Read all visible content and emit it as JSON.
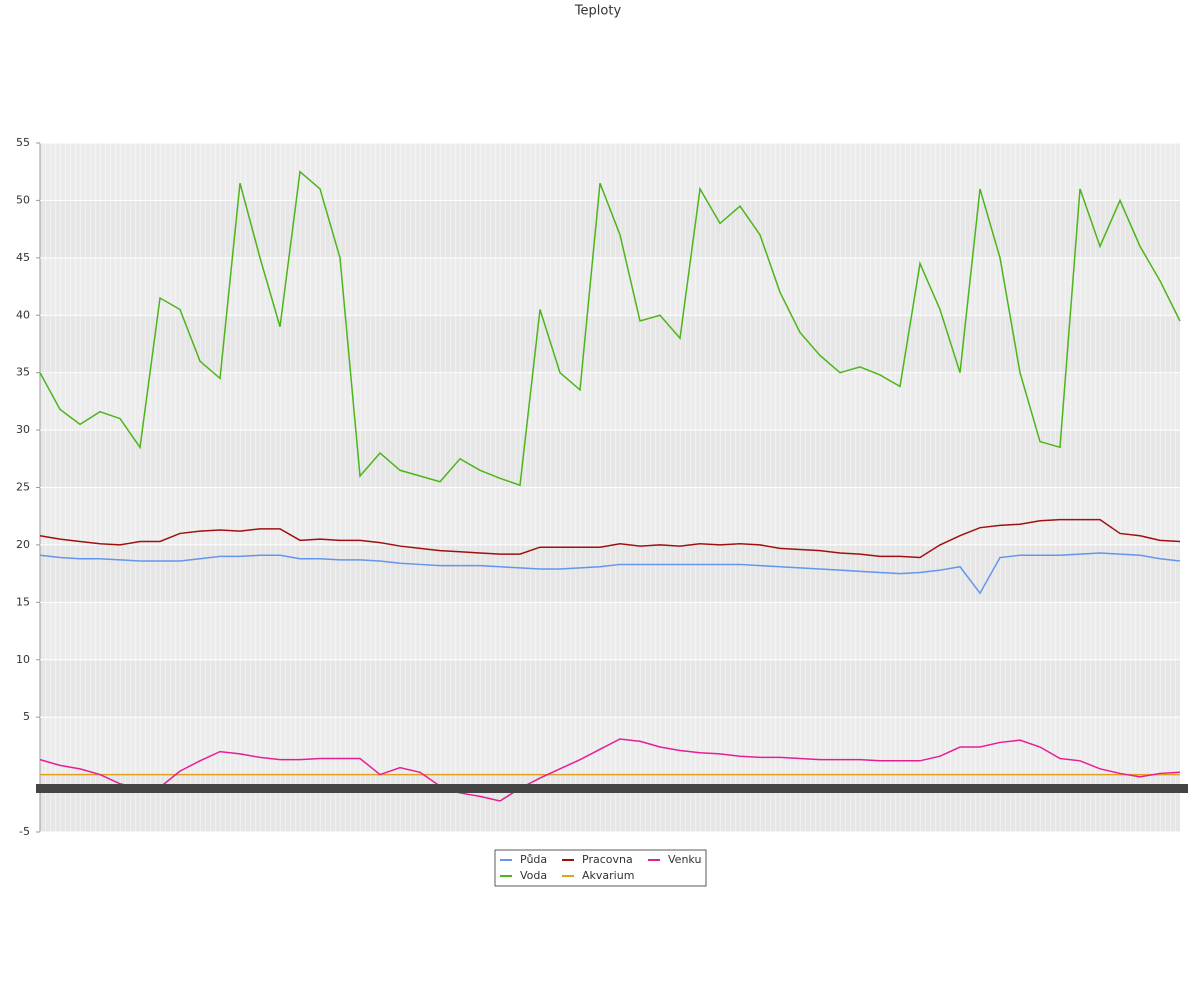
{
  "chart_data": {
    "type": "line",
    "title": "Teploty",
    "categories": [
      null,
      null,
      null,
      null,
      null,
      null,
      null,
      null,
      null,
      null,
      null,
      null,
      null,
      null,
      null,
      null,
      null,
      null,
      null,
      null,
      null,
      null,
      null,
      null,
      null,
      null,
      null,
      null,
      null,
      null,
      null,
      null,
      null,
      null,
      null,
      null,
      null,
      null,
      null,
      null,
      null,
      null,
      null,
      null,
      null,
      null,
      null,
      null,
      null,
      null,
      null,
      null,
      null,
      null,
      null,
      null,
      null,
      null
    ],
    "ylim": [
      -5,
      55
    ],
    "yticks": [
      -5,
      5,
      10,
      15,
      20,
      25,
      30,
      35,
      40,
      45,
      50,
      55
    ],
    "grid": true,
    "series": [
      {
        "name": "Půda",
        "color": "#6495ed",
        "values": [
          19.1,
          18.9,
          18.8,
          18.8,
          18.7,
          18.6,
          18.6,
          18.6,
          18.8,
          19,
          19,
          19.1,
          19.1,
          18.8,
          18.8,
          18.7,
          18.7,
          18.6,
          18.4,
          18.3,
          18.2,
          18.2,
          18.2,
          18.1,
          18,
          17.9,
          17.9,
          18,
          18.1,
          18.3,
          18.3,
          18.3,
          18.3,
          18.3,
          18.3,
          18.3,
          18.2,
          18.1,
          18,
          17.9,
          17.8,
          17.7,
          17.6,
          17.5,
          17.6,
          17.8,
          18.1,
          15.8,
          18.9,
          19.1,
          19.1,
          19.1,
          19.2,
          19.3,
          19.2,
          19.1,
          18.8,
          18.6
        ]
      },
      {
        "name": "Voda",
        "color": "#4cb51a",
        "values": [
          35,
          31.8,
          30.5,
          31.6,
          31,
          28.5,
          41.5,
          40.5,
          36,
          34.5,
          51.5,
          45,
          39,
          52.5,
          51,
          45,
          26,
          28,
          26.5,
          26,
          25.5,
          27.5,
          26.5,
          25.8,
          25.2,
          40.5,
          35,
          33.5,
          51.5,
          47,
          39.5,
          40,
          38,
          51,
          48,
          49.5,
          47,
          42,
          38.5,
          36.5,
          35,
          35.5,
          34.8,
          33.8,
          44.5,
          40.5,
          35,
          51,
          45,
          35,
          29,
          28.5,
          51,
          46,
          50,
          46,
          43,
          39.5
        ]
      },
      {
        "name": "Pracovna",
        "color": "#a01010",
        "values": [
          20.8,
          20.5,
          20.3,
          20.1,
          20,
          20.3,
          20.3,
          21,
          21.2,
          21.3,
          21.2,
          21.4,
          21.4,
          20.4,
          20.5,
          20.4,
          20.4,
          20.2,
          19.9,
          19.7,
          19.5,
          19.4,
          19.3,
          19.2,
          19.2,
          19.8,
          19.8,
          19.8,
          19.8,
          20.1,
          19.9,
          20,
          19.9,
          20.1,
          20,
          20.1,
          20,
          19.7,
          19.6,
          19.5,
          19.3,
          19.2,
          19,
          19,
          18.9,
          20,
          20.8,
          21.5,
          21.7,
          21.8,
          22.1,
          22.2,
          22.2,
          22.2,
          21,
          20.8,
          20.4,
          20.3
        ]
      },
      {
        "name": "Akvarium",
        "color": "#e0a020",
        "values": [
          0,
          0,
          0,
          0,
          0,
          0,
          0,
          0,
          0,
          0,
          0,
          0,
          0,
          0,
          0,
          0,
          0,
          0,
          0,
          0,
          0,
          0,
          0,
          0,
          0,
          0,
          0,
          0,
          0,
          0,
          0,
          0,
          0,
          0,
          0,
          0,
          0,
          0,
          0,
          0,
          0,
          0,
          0,
          0,
          0,
          0,
          0,
          0,
          0,
          0,
          0,
          0,
          0,
          0,
          0,
          0,
          0,
          0
        ]
      },
      {
        "name": "Venku",
        "color": "#e61e96",
        "values": [
          1.3,
          0.8,
          0.5,
          0,
          -0.8,
          -1.2,
          -1.1,
          0.3,
          1.2,
          2,
          1.8,
          1.5,
          1.3,
          1.3,
          1.4,
          1.4,
          1.4,
          0,
          0.6,
          0.2,
          -1,
          -1.6,
          -1.9,
          -2.3,
          -1.2,
          -0.3,
          0.5,
          1.3,
          2.2,
          3.1,
          2.9,
          2.4,
          2.1,
          1.9,
          1.8,
          1.6,
          1.5,
          1.5,
          1.4,
          1.3,
          1.3,
          1.3,
          1.2,
          1.2,
          1.2,
          1.6,
          2.4,
          2.4,
          2.8,
          3,
          2.4,
          1.4,
          1.2,
          0.5,
          0.1,
          -0.2,
          0.1,
          0.2
        ]
      }
    ]
  }
}
